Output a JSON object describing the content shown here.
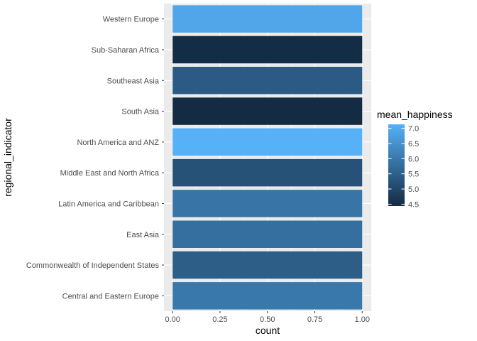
{
  "chart_data": {
    "type": "bar",
    "orientation": "horizontal",
    "xlabel": "count",
    "ylabel": "regional_indicator",
    "xlim": [
      0,
      1
    ],
    "x_ticks": [
      "0.00",
      "0.25",
      "0.50",
      "0.75",
      "1.00"
    ],
    "x_tick_values": [
      0,
      0.25,
      0.5,
      0.75,
      1.0
    ],
    "categories": [
      "Central and Eastern Europe",
      "Commonwealth of Independent States",
      "East Asia",
      "Latin America and Caribbean",
      "Middle East and North Africa",
      "North America and ANZ",
      "South Asia",
      "Southeast Asia",
      "Sub-Saharan Africa",
      "Western Europe"
    ],
    "values": [
      1,
      1,
      1,
      1,
      1,
      1,
      1,
      1,
      1,
      1
    ],
    "fill_values": [
      5.98,
      5.47,
      5.81,
      5.91,
      5.22,
      7.13,
      4.44,
      5.41,
      4.49,
      6.9
    ],
    "legend": {
      "title": "mean_happiness",
      "placement": "right",
      "labels": [
        "7.0",
        "6.5",
        "6.0",
        "5.5",
        "5.0",
        "4.5"
      ],
      "label_values": [
        7.0,
        6.5,
        6.0,
        5.5,
        5.0,
        4.5
      ],
      "range": [
        4.44,
        7.13
      ],
      "color_low": "#132B43",
      "color_high": "#56B1F7"
    },
    "grid": true,
    "panel_background": "#EBEBEB",
    "gridline_color": "#FFFFFF"
  }
}
